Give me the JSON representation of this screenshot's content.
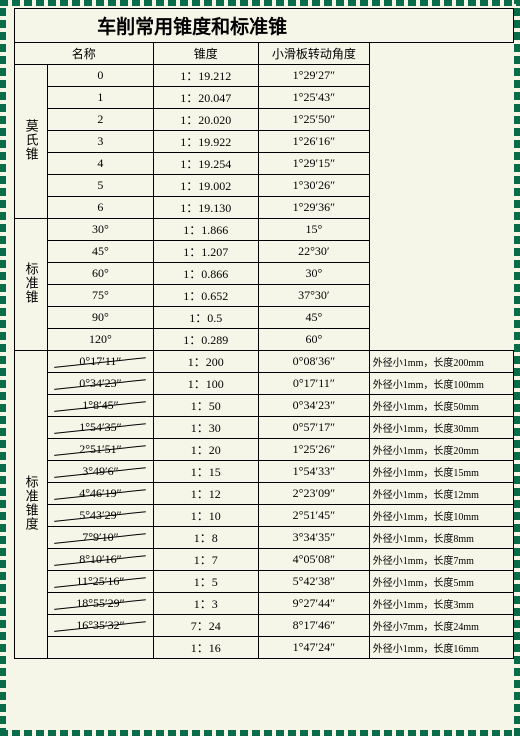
{
  "title": "车削常用锥度和标准锥",
  "headers": {
    "name": "名称",
    "taper": "锥度",
    "angle": "小滑板转动角度"
  },
  "sections": [
    {
      "label": "莫氏锥",
      "rows": [
        {
          "n": "0",
          "t": "1：19.212",
          "a": "1°29′27″"
        },
        {
          "n": "1",
          "t": "1：20.047",
          "a": "1°25′43″"
        },
        {
          "n": "2",
          "t": "1：20.020",
          "a": "1°25′50″"
        },
        {
          "n": "3",
          "t": "1：19.922",
          "a": "1°26′16″"
        },
        {
          "n": "4",
          "t": "1：19.254",
          "a": "1°29′15″"
        },
        {
          "n": "5",
          "t": "1：19.002",
          "a": "1°30′26″"
        },
        {
          "n": "6",
          "t": "1：19.130",
          "a": "1°29′36″"
        }
      ]
    },
    {
      "label": "标准锥",
      "rows": [
        {
          "n": "30°",
          "t": "1：1.866",
          "a": "15°"
        },
        {
          "n": "45°",
          "t": "1：1.207",
          "a": "22°30′"
        },
        {
          "n": "60°",
          "t": "1：0.866",
          "a": "30°"
        },
        {
          "n": "75°",
          "t": "1：0.652",
          "a": "37°30′"
        },
        {
          "n": "90°",
          "t": "1：0.5",
          "a": "45°"
        },
        {
          "n": "120°",
          "t": "1：0.289",
          "a": "60°"
        }
      ]
    },
    {
      "label": "标准锥度",
      "rows": [
        {
          "n": "0°17′11″",
          "t": "1：200",
          "a": "0°08′36″",
          "note": "外径小1mm，长度200mm",
          "strike": true
        },
        {
          "n": "0°34′23″",
          "t": "1：100",
          "a": "0°17′11″",
          "note": "外径小1mm，长度100mm",
          "strike": true
        },
        {
          "n": "1°8′45″",
          "t": "1：50",
          "a": "0°34′23″",
          "note": "外径小1mm，长度50mm",
          "strike": true
        },
        {
          "n": "1°54′35″",
          "t": "1：30",
          "a": "0°57′17″",
          "note": "外径小1mm，长度30mm",
          "strike": true
        },
        {
          "n": "2°51′51″",
          "t": "1：20",
          "a": "1°25′26″",
          "note": "外径小1mm，长度20mm",
          "strike": true
        },
        {
          "n": "3°49′6″",
          "t": "1：15",
          "a": "1°54′33″",
          "note": "外径小1mm，长度15mm",
          "strike": true
        },
        {
          "n": "4°46′19″",
          "t": "1：12",
          "a": "2°23′09″",
          "note": "外径小1mm，长度12mm",
          "strike": true
        },
        {
          "n": "5°43′29″",
          "t": "1：10",
          "a": "2°51′45″",
          "note": "外径小1mm，长度10mm",
          "strike": true
        },
        {
          "n": "7°9′10″",
          "t": "1：8",
          "a": "3°34′35″",
          "note": "外径小1mm，长度8mm",
          "strike": true
        },
        {
          "n": "8°10′16″",
          "t": "1：7",
          "a": "4°05′08″",
          "note": "外径小1mm，长度7mm",
          "strike": true
        },
        {
          "n": "11°25′16″",
          "t": "1：5",
          "a": "5°42′38″",
          "note": "外径小1mm，长度5mm",
          "strike": true
        },
        {
          "n": "18°55′29″",
          "t": "1：3",
          "a": "9°27′44″",
          "note": "外径小1mm，长度3mm",
          "strike": true
        },
        {
          "n": "16°35′32″",
          "t": "7：24",
          "a": "8°17′46″",
          "note": "外径小7mm，长度24mm",
          "strike": true
        },
        {
          "n": "",
          "t": "1：16",
          "a": "1°47′24″",
          "note": "外径小1mm，长度16mm"
        }
      ]
    }
  ],
  "columns": {
    "label_w": 30,
    "name_w": 95,
    "taper_w": 95,
    "angle_w": 95,
    "note_w": 130
  },
  "colors": {
    "dash": "#0a6b4a",
    "bg": "#f5f5e8",
    "border": "#000000"
  }
}
